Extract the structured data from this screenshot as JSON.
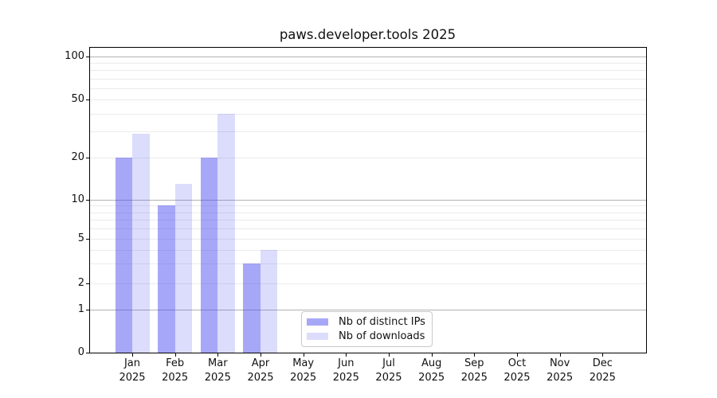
{
  "title": "paws.developer.tools 2025",
  "x_axis": {
    "months": [
      "Jan",
      "Feb",
      "Mar",
      "Apr",
      "May",
      "Jun",
      "Jul",
      "Aug",
      "Sep",
      "Oct",
      "Nov",
      "Dec"
    ],
    "year": "2025"
  },
  "y_axis": {
    "tick_values": [
      100,
      50,
      20,
      10,
      5,
      2,
      1,
      0
    ],
    "tick_labels": [
      "100",
      "50",
      "20",
      "10",
      "5",
      "2",
      "1",
      "0"
    ]
  },
  "legend": {
    "items": [
      {
        "label": "Nb of distinct IPs",
        "color": "rgba(68,68,238,0.47)"
      },
      {
        "label": "Nb of downloads",
        "color": "rgba(68,68,238,0.19)"
      }
    ]
  },
  "chart_data": {
    "type": "bar",
    "title": "paws.developer.tools 2025",
    "xlabel": "",
    "ylabel": "",
    "categories": [
      "Jan 2025",
      "Feb 2025",
      "Mar 2025",
      "Apr 2025",
      "May 2025",
      "Jun 2025",
      "Jul 2025",
      "Aug 2025",
      "Sep 2025",
      "Oct 2025",
      "Nov 2025",
      "Dec 2025"
    ],
    "series": [
      {
        "name": "Nb of distinct IPs",
        "color": "rgba(68,68,238,0.47)",
        "values": [
          20,
          9,
          20,
          3,
          0,
          0,
          0,
          0,
          0,
          0,
          0,
          0
        ]
      },
      {
        "name": "Nb of downloads",
        "color": "rgba(68,68,238,0.19)",
        "values": [
          29,
          13,
          40,
          4,
          0,
          0,
          0,
          0,
          0,
          0,
          0,
          0
        ]
      }
    ],
    "yscale": "log-like with linear segment from 0 to 1",
    "y_ticks": [
      0,
      1,
      2,
      5,
      10,
      20,
      50,
      100
    ],
    "ylim": [
      0,
      130
    ],
    "grid": "horizontal major lines at 1/10/100, faint minor lines at 2-9, 20-90",
    "gridlines_major": [
      1,
      10,
      100
    ],
    "gridlines_minor": [
      2,
      3,
      4,
      5,
      6,
      7,
      8,
      9,
      20,
      30,
      40,
      50,
      60,
      70,
      80,
      90
    ],
    "legend_position": "lower center"
  }
}
